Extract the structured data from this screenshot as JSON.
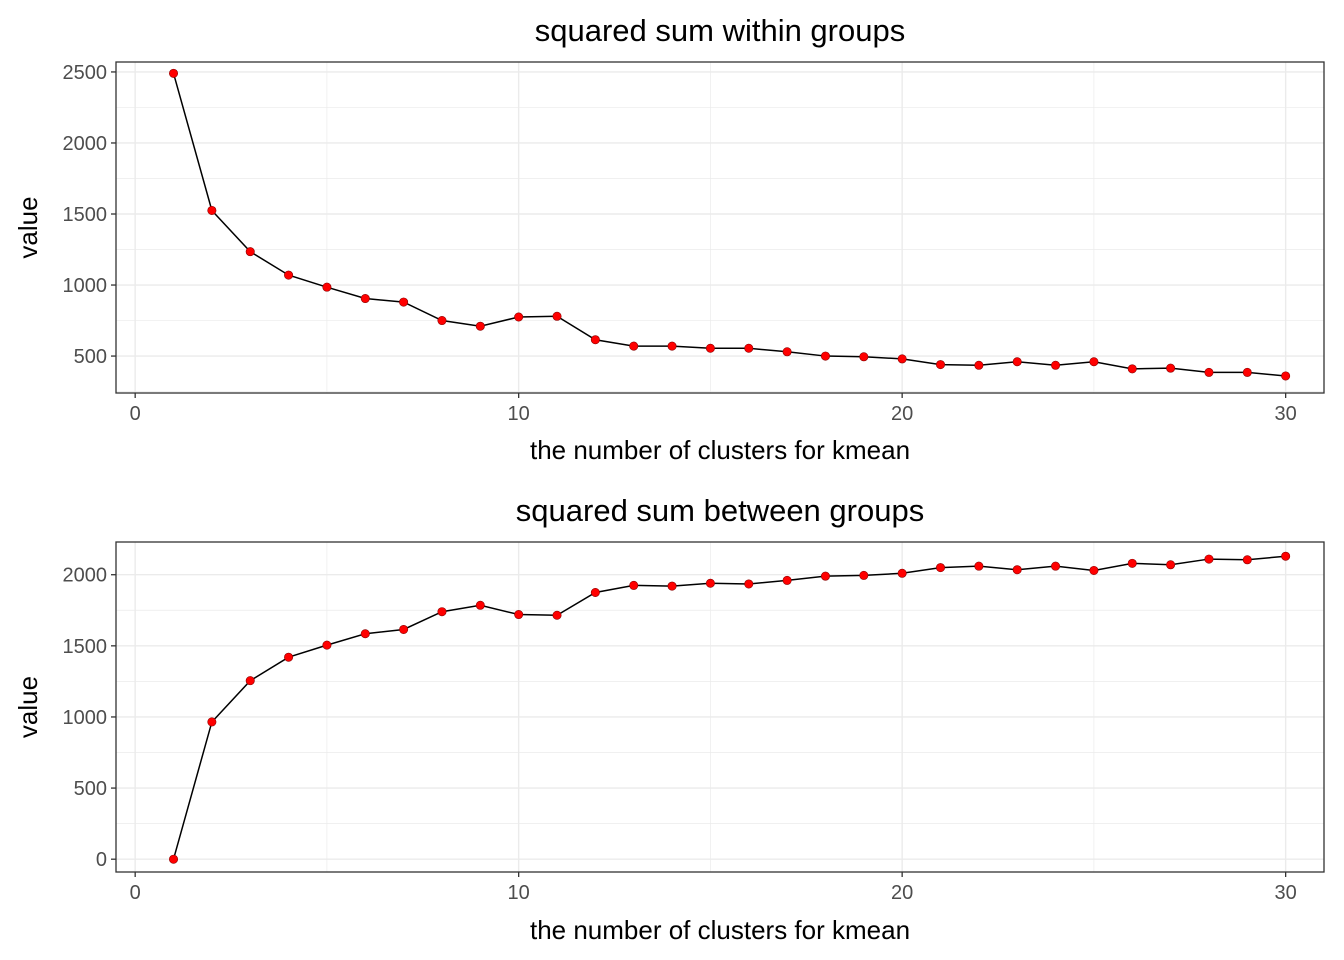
{
  "chart_data": [
    {
      "type": "line",
      "title": "squared sum within groups",
      "xlabel": "the number of clusters for kmean",
      "ylabel": "value",
      "xlim": [
        -0.5,
        31.0
      ],
      "ylim": [
        240,
        2570
      ],
      "x_ticks": [
        0,
        10,
        20,
        30
      ],
      "y_ticks": [
        500,
        1000,
        1500,
        2000,
        2500
      ],
      "grid": true,
      "line_color": "#000000",
      "point_color": "#ff0000",
      "x": [
        1,
        2,
        3,
        4,
        5,
        6,
        7,
        8,
        9,
        10,
        11,
        12,
        13,
        14,
        15,
        16,
        17,
        18,
        19,
        20,
        21,
        22,
        23,
        24,
        25,
        26,
        27,
        28,
        29,
        30
      ],
      "values": [
        2490,
        1525,
        1235,
        1070,
        985,
        905,
        880,
        750,
        710,
        775,
        780,
        615,
        570,
        570,
        555,
        555,
        530,
        500,
        495,
        480,
        440,
        435,
        460,
        435,
        460,
        410,
        415,
        385,
        385,
        360
      ]
    },
    {
      "type": "line",
      "title": "squared sum between groups",
      "xlabel": "the number of clusters for kmean",
      "ylabel": "value",
      "xlim": [
        -0.5,
        31.0
      ],
      "ylim": [
        -90,
        2230
      ],
      "x_ticks": [
        0,
        10,
        20,
        30
      ],
      "y_ticks": [
        0,
        500,
        1000,
        1500,
        2000
      ],
      "grid": true,
      "line_color": "#000000",
      "point_color": "#ff0000",
      "x": [
        1,
        2,
        3,
        4,
        5,
        6,
        7,
        8,
        9,
        10,
        11,
        12,
        13,
        14,
        15,
        16,
        17,
        18,
        19,
        20,
        21,
        22,
        23,
        24,
        25,
        26,
        27,
        28,
        29,
        30
      ],
      "values": [
        0,
        965,
        1255,
        1420,
        1505,
        1585,
        1615,
        1740,
        1785,
        1720,
        1715,
        1875,
        1925,
        1920,
        1940,
        1935,
        1960,
        1990,
        1995,
        2010,
        2050,
        2060,
        2035,
        2060,
        2030,
        2080,
        2070,
        2110,
        2105,
        2130
      ]
    }
  ]
}
